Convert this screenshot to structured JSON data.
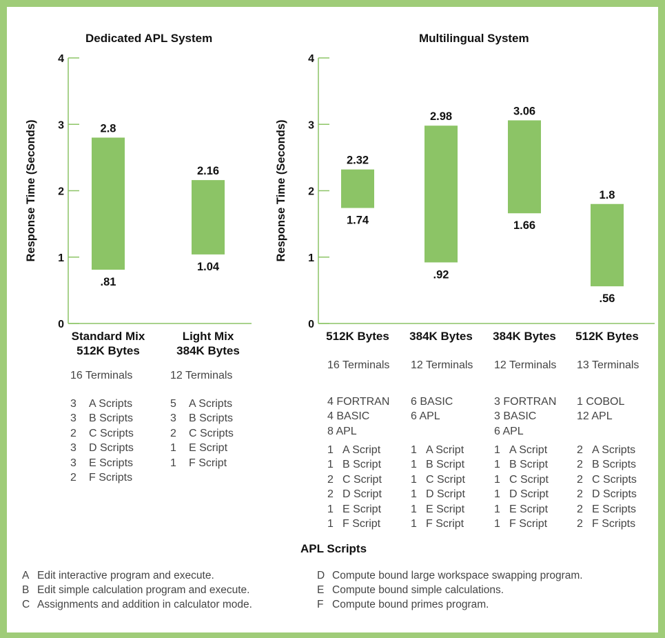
{
  "colors": {
    "bar": "#8cc466",
    "axis": "#8cc466",
    "frame": "#9fcc78",
    "text": "#1c1c1c"
  },
  "chart_data": [
    {
      "type": "bar",
      "subtype": "floating-range",
      "title": "Dedicated APL System",
      "ylabel": "Response Time (Seconds)",
      "ylim": [
        0,
        4
      ],
      "yticks": [
        "0",
        "1",
        "2",
        "3",
        "4"
      ],
      "grid": false,
      "categories": [
        {
          "name": "Standard Mix",
          "memory": "512K Bytes",
          "terminals": "16 Terminals",
          "languages": [],
          "scripts": [
            [
              "3",
              "A Scripts"
            ],
            [
              "3",
              "B Scripts"
            ],
            [
              "2",
              "C Scripts"
            ],
            [
              "3",
              "D Scripts"
            ],
            [
              "3",
              "E Scripts"
            ],
            [
              "2",
              "F Scripts"
            ]
          ]
        },
        {
          "name": "Light Mix",
          "memory": "384K Bytes",
          "terminals": "12 Terminals",
          "languages": [],
          "scripts": [
            [
              "5",
              "A Scripts"
            ],
            [
              "3",
              "B Scripts"
            ],
            [
              "2",
              "C Scripts"
            ],
            [
              "1",
              "E Script"
            ],
            [
              "1",
              "F Script"
            ]
          ]
        }
      ],
      "series": [
        {
          "low": [
            0.81,
            1.04
          ],
          "high": [
            2.8,
            2.16
          ],
          "low_labels": [
            ".81",
            "1.04"
          ],
          "high_labels": [
            "2.8",
            "2.16"
          ]
        }
      ]
    },
    {
      "type": "bar",
      "subtype": "floating-range",
      "title": "Multilingual System",
      "ylabel": "Response Time (Seconds)",
      "ylim": [
        0,
        4
      ],
      "yticks": [
        "0",
        "1",
        "2",
        "3",
        "4"
      ],
      "grid": false,
      "categories": [
        {
          "name": "",
          "memory": "512K Bytes",
          "terminals": "16 Terminals",
          "languages": [
            "4 FORTRAN",
            "4 BASIC",
            "8 APL"
          ],
          "scripts": [
            [
              "1",
              "A Script"
            ],
            [
              "1",
              "B Script"
            ],
            [
              "2",
              "C Script"
            ],
            [
              "2",
              "D Script"
            ],
            [
              "1",
              "E Script"
            ],
            [
              "1",
              "F Script"
            ]
          ]
        },
        {
          "name": "",
          "memory": "384K Bytes",
          "terminals": "12 Terminals",
          "languages": [
            "6 BASIC",
            "6 APL"
          ],
          "scripts": [
            [
              "1",
              "A Script"
            ],
            [
              "1",
              "B Script"
            ],
            [
              "1",
              "C Script"
            ],
            [
              "1",
              "D Script"
            ],
            [
              "1",
              "E Script"
            ],
            [
              "1",
              "F Script"
            ]
          ]
        },
        {
          "name": "",
          "memory": "384K Bytes",
          "terminals": "12 Terminals",
          "languages": [
            "3 FORTRAN",
            "3 BASIC",
            "6 APL"
          ],
          "scripts": [
            [
              "1",
              "A Script"
            ],
            [
              "1",
              "B Script"
            ],
            [
              "1",
              "C Script"
            ],
            [
              "1",
              "D Script"
            ],
            [
              "1",
              "E Script"
            ],
            [
              "1",
              "F Script"
            ]
          ]
        },
        {
          "name": "",
          "memory": "512K Bytes",
          "terminals": "13 Terminals",
          "languages": [
            "1 COBOL",
            "12 APL"
          ],
          "scripts": [
            [
              "2",
              "A Scripts"
            ],
            [
              "2",
              "B Scripts"
            ],
            [
              "2",
              "C Scripts"
            ],
            [
              "2",
              "D Scripts"
            ],
            [
              "2",
              "E Scripts"
            ],
            [
              "2",
              "F Scripts"
            ]
          ]
        }
      ],
      "series": [
        {
          "low": [
            1.74,
            0.92,
            1.66,
            0.56
          ],
          "high": [
            2.32,
            2.98,
            3.06,
            1.8
          ],
          "low_labels": [
            "1.74",
            ".92",
            "1.66",
            ".56"
          ],
          "high_labels": [
            "2.32",
            "2.98",
            "3.06",
            "1.8"
          ]
        }
      ]
    }
  ],
  "legend": {
    "title": "APL Scripts",
    "items": [
      {
        "key": "A",
        "text": "Edit interactive program and execute."
      },
      {
        "key": "B",
        "text": "Edit simple calculation program and execute."
      },
      {
        "key": "C",
        "text": "Assignments and addition in calculator mode."
      },
      {
        "key": "D",
        "text": "Compute bound large workspace swapping program."
      },
      {
        "key": "E",
        "text": "Compute bound simple calculations."
      },
      {
        "key": "F",
        "text": "Compute bound primes program."
      }
    ]
  }
}
